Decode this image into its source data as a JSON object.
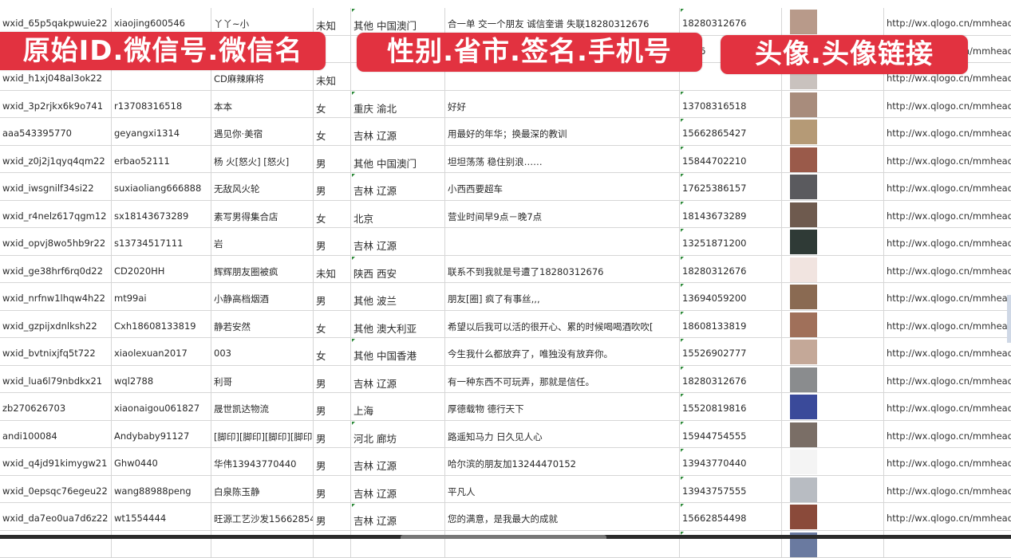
{
  "banners": [
    "原始ID.微信号.微信名",
    "性别.省市.签名.手机号",
    "头像.头像链接"
  ],
  "rows": [
    {
      "id": "wxid_65p5qakpwuie22",
      "wechat": "xiaojing600546",
      "name": "丫丫~小",
      "gender": "未知",
      "region": "其他 中国澳门",
      "signature": "合一单 交一个朋友 诚信奎谱 失联18280312676",
      "phone": "18280312676",
      "avatar_color": "#b89a8a",
      "link": "http://wx.qlogo.cn/mmhead"
    },
    {
      "id": "",
      "wechat": "",
      "name": "",
      "gender": "",
      "region": "",
      "signature": "",
      "phone": "5386",
      "avatar_color": "#6a7fa8",
      "link": "http://wx.qlogo.cn/mmhead"
    },
    {
      "id": "wxid_h1xj048al3ok22",
      "wechat": "",
      "name": "CD麻辣麻将",
      "gender": "未知",
      "region": "",
      "signature": "",
      "phone": "",
      "avatar_color": "#c9c2be",
      "link": "http://wx.qlogo.cn/mmhead"
    },
    {
      "id": "wxid_3p2rjkx6k9o741",
      "wechat": "r13708316518",
      "name": "本本",
      "gender": "女",
      "region": "重庆 渝北",
      "signature": "好好",
      "phone": "13708316518",
      "avatar_color": "#a88c7c",
      "link": "http://wx.qlogo.cn/mmhead"
    },
    {
      "id": "aaa543395770",
      "wechat": "geyangxi1314",
      "name": "遇见你·美宿",
      "gender": "女",
      "region": "吉林 辽源",
      "signature": "用最好的年华；换最深的教训",
      "phone": "15662865427",
      "avatar_color": "#b59a76",
      "link": "http://wx.qlogo.cn/mmhead"
    },
    {
      "id": "wxid_z0j2j1qyq4qm22",
      "wechat": "erbao52111",
      "name": "杨 火[怒火] [怒火]",
      "gender": "男",
      "region": "其他 中国澳门",
      "signature": "坦坦荡荡 稳住别浪……",
      "phone": "15844702210",
      "avatar_color": "#9a5a4a",
      "link": "http://wx.qlogo.cn/mmhead"
    },
    {
      "id": "wxid_iwsgnilf34si22",
      "wechat": "suxiaoliang666888",
      "name": "无敌风火轮",
      "gender": "男",
      "region": "吉林 辽源",
      "signature": "小西西要超车",
      "phone": "17625386157",
      "avatar_color": "#5a5a5e",
      "link": "http://wx.qlogo.cn/mmhead"
    },
    {
      "id": "wxid_r4nelz617qgm12",
      "wechat": "sx18143673289",
      "name": "素写男得集合店",
      "gender": "女",
      "region": "北京",
      "signature": "营业时间早9点－晚7点",
      "phone": "18143673289",
      "avatar_color": "#6e5a4e",
      "link": "http://wx.qlogo.cn/mmhead"
    },
    {
      "id": "wxid_opvj8wo5hb9r22",
      "wechat": "s13734517111",
      "name": "岩",
      "gender": "男",
      "region": "吉林 辽源",
      "signature": "",
      "phone": "13251871200",
      "avatar_color": "#2f3a36",
      "link": "http://wx.qlogo.cn/mmhead"
    },
    {
      "id": "wxid_ge38hrf6rq0d22",
      "wechat": "CD2020HH",
      "name": "辉辉朋友圈被疯",
      "gender": "未知",
      "region": "陕西 西安",
      "signature": "联系不到我就是号遭了18280312676",
      "phone": "18280312676",
      "avatar_color": "#f1e4e0",
      "link": "http://wx.qlogo.cn/mmhead"
    },
    {
      "id": "wxid_nrfnw1lhqw4h22",
      "wechat": "mt99ai",
      "name": "小静高档烟酒",
      "gender": "男",
      "region": "其他 波兰",
      "signature": "朋友[圈] 疯了有事丝,,,",
      "phone": "13694059200",
      "avatar_color": "#8a6a52",
      "link": "http://wx.qlogo.cn/mmhead"
    },
    {
      "id": "wxid_gzpijxdnlksh22",
      "wechat": "Cxh18608133819",
      "name": "静若安然",
      "gender": "女",
      "region": "其他 澳大利亚",
      "signature": "希望以后我可以活的很开心、累的时候喝喝酒吹吹[",
      "phone": "18608133819",
      "avatar_color": "#a0705a",
      "link": "http://wx.qlogo.cn/mmhead"
    },
    {
      "id": "wxid_bvtnixjfq5t722",
      "wechat": "xiaolexuan2017",
      "name": "003",
      "gender": "女",
      "region": "其他 中国香港",
      "signature": "今生我什么都放弃了，唯独没有放弃你。",
      "phone": "15526902777",
      "avatar_color": "#c4a898",
      "link": "http://wx.qlogo.cn/mmhead"
    },
    {
      "id": "wxid_lua6l79nbdkx21",
      "wechat": "wql2788",
      "name": "利哥",
      "gender": "男",
      "region": "吉林 辽源",
      "signature": "有一种东西不可玩弄，那就是信任。",
      "phone": "18280312676",
      "avatar_color": "#8a8c8e",
      "link": "http://wx.qlogo.cn/mmhead"
    },
    {
      "id": "zb270626703",
      "wechat": "xiaonaigou061827",
      "name": "晟世凯达物流",
      "gender": "男",
      "region": "上海",
      "signature": "厚德载物 德行天下",
      "phone": "15520819816",
      "avatar_color": "#3a4a9a",
      "link": "http://wx.qlogo.cn/mmhead"
    },
    {
      "id": "andi100084",
      "wechat": "Andybaby91127",
      "name": "[脚印][脚印][脚印][脚印]",
      "gender": "男",
      "region": "河北 廊坊",
      "signature": "路遥知马力 日久见人心",
      "phone": "15944754555",
      "avatar_color": "#7a6e66",
      "link": "http://wx.qlogo.cn/mmhead"
    },
    {
      "id": "wxid_q4jd91kimygw21",
      "wechat": "Ghw0440",
      "name": "华伟13943770440",
      "gender": "男",
      "region": "吉林 辽源",
      "signature": "哈尔滨的朋友加13244470152",
      "phone": "13943770440",
      "avatar_color": "#f4f4f4",
      "link": "http://wx.qlogo.cn/mmhead"
    },
    {
      "id": "wxid_0epsqc76egeu22",
      "wechat": "wang88988peng",
      "name": "白泉陈玉静",
      "gender": "男",
      "region": "吉林 辽源",
      "signature": "平凡人",
      "phone": "13943757555",
      "avatar_color": "#b8bcc2",
      "link": "http://wx.qlogo.cn/mmhead"
    },
    {
      "id": "wxid_da7eo0ua7d6z22",
      "wechat": "wt1554444",
      "name": "旺源工艺沙发15662854",
      "gender": "男",
      "region": "吉林 辽源",
      "signature": "您的满意，是我最大的成就",
      "phone": "15662854498",
      "avatar_color": "#8a4a3a",
      "link": "http://wx.qlogo.cn/mmhead"
    },
    {
      "id": "",
      "wechat": "",
      "name": "",
      "gender": "",
      "region": "",
      "signature": "",
      "phone": "",
      "avatar_color": "#6a7aa0",
      "link": ""
    }
  ]
}
